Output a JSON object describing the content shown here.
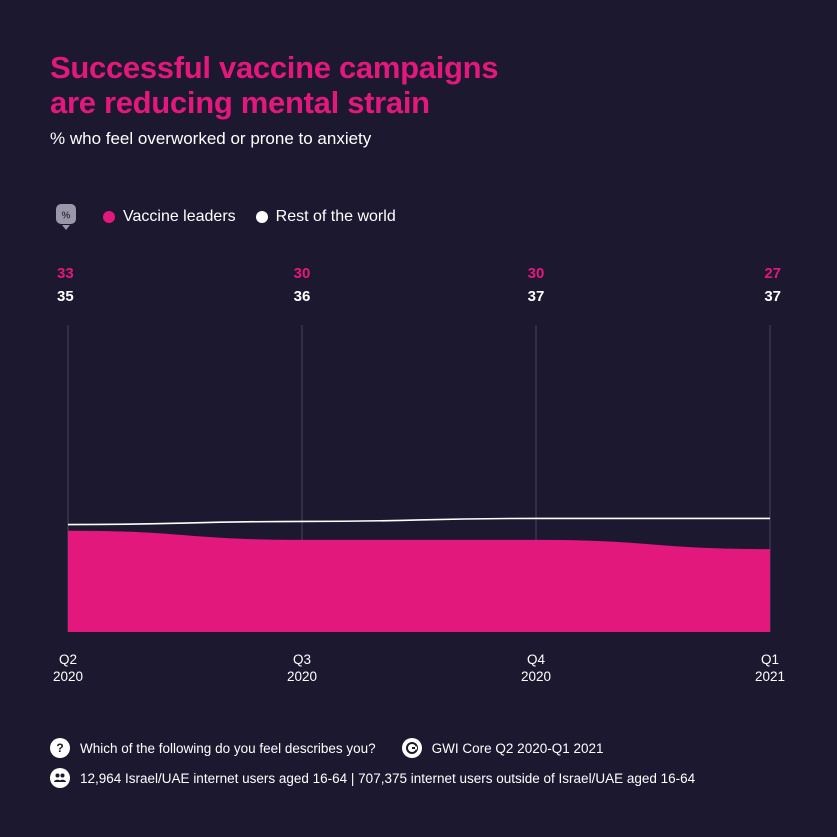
{
  "header": {
    "title_line1": "Successful vaccine campaigns",
    "title_line2": "are reducing mental strain",
    "subtitle": "% who feel overworked or prone to anxiety"
  },
  "legend": {
    "badge_label": "%",
    "items": [
      {
        "label": "Vaccine leaders",
        "color": "#e2187c"
      },
      {
        "label": "Rest of the world",
        "color": "#ffffff"
      }
    ]
  },
  "chart_data": {
    "type": "area",
    "categories": [
      [
        "Q2",
        "2020"
      ],
      [
        "Q3",
        "2020"
      ],
      [
        "Q4",
        "2020"
      ],
      [
        "Q1",
        "2021"
      ]
    ],
    "series": [
      {
        "name": "Vaccine leaders",
        "values": [
          33,
          30,
          30,
          27
        ],
        "color": "#e2187c",
        "style": "filled area"
      },
      {
        "name": "Rest of the world",
        "values": [
          35,
          36,
          37,
          37
        ],
        "color": "#ffffff",
        "style": "line"
      }
    ],
    "ylim": [
      0,
      100
    ],
    "grid": "vertical lines at each category",
    "legend_position": "top-left"
  },
  "footer": {
    "question_icon": "question-icon",
    "question": "Which of the following do you feel describes you?",
    "source_icon": "gwi-logo-icon",
    "source": "GWI Core Q2 2020-Q1 2021",
    "sample_icon": "people-icon",
    "sample": "12,964 Israel/UAE internet users aged 16-64 | 707,375 internet users outside of Israel/UAE aged 16-64"
  }
}
